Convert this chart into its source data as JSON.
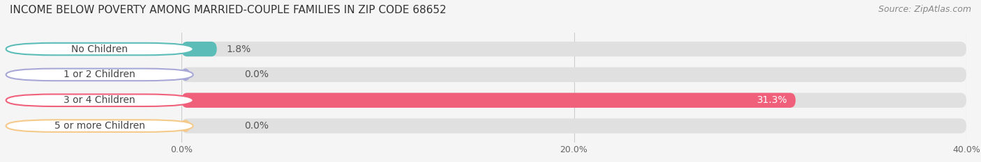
{
  "title": "INCOME BELOW POVERTY AMONG MARRIED-COUPLE FAMILIES IN ZIP CODE 68652",
  "source": "Source: ZipAtlas.com",
  "categories": [
    "No Children",
    "1 or 2 Children",
    "3 or 4 Children",
    "5 or more Children"
  ],
  "values": [
    1.8,
    0.0,
    31.3,
    0.0
  ],
  "bar_colors": [
    "#5bbcb8",
    "#a8a8d8",
    "#f0607a",
    "#f5c98a"
  ],
  "background_color": "#f5f5f5",
  "bar_bg_color": "#e0e0e0",
  "xlim": [
    0,
    40
  ],
  "xticks": [
    0,
    20,
    40
  ],
  "xticklabels": [
    "0.0%",
    "20.0%",
    "40.0%"
  ],
  "title_fontsize": 11,
  "source_fontsize": 9,
  "label_fontsize": 10,
  "value_fontsize": 10,
  "bar_height": 0.58
}
